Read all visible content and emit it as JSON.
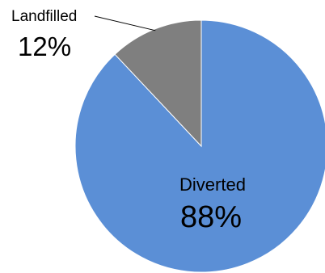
{
  "chart_data": {
    "type": "pie",
    "title": "",
    "slices": [
      {
        "label": "Diverted",
        "value": 88,
        "value_label": "88%",
        "color": "#5B8FD6"
      },
      {
        "label": "Landfilled",
        "value": 12,
        "value_label": "12%",
        "color": "#7F7F7F"
      }
    ],
    "start_angle": "12 o'clock",
    "direction": "clockwise",
    "legend": "none",
    "label_placement": {
      "Diverted": "inside",
      "Landfilled": "outside with leader line"
    }
  }
}
